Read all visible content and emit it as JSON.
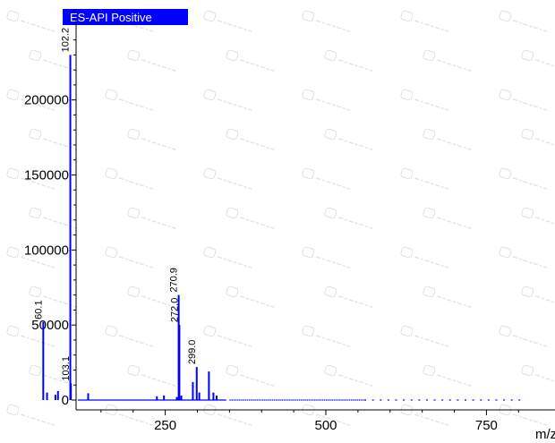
{
  "chart_data": {
    "type": "bar",
    "title": "ES-API Positive",
    "xlabel": "m/z",
    "ylabel": "",
    "xlim": [
      0,
      820
    ],
    "ylim": [
      -5000,
      285000
    ],
    "xticks": [
      250,
      500,
      750
    ],
    "yticks": [
      0,
      50000,
      100000,
      150000,
      200000
    ],
    "grid": false,
    "series_color": "#0000ff",
    "title_bg": "#0000ff",
    "peaks": [
      {
        "x": 60.1,
        "y": 52000,
        "label": "60.1"
      },
      {
        "x": 66.0,
        "y": 5000,
        "label": ""
      },
      {
        "x": 79.0,
        "y": 3500,
        "label": ""
      },
      {
        "x": 83.0,
        "y": 6000,
        "label": ""
      },
      {
        "x": 102.2,
        "y": 230000,
        "label": "102.2"
      },
      {
        "x": 103.1,
        "y": 11000,
        "label": "103.1"
      },
      {
        "x": 130.0,
        "y": 4500,
        "label": ""
      },
      {
        "x": 237.0,
        "y": 2500,
        "label": ""
      },
      {
        "x": 248.0,
        "y": 3000,
        "label": ""
      },
      {
        "x": 268.0,
        "y": 2000,
        "label": ""
      },
      {
        "x": 270.9,
        "y": 70000,
        "label": "270.9"
      },
      {
        "x": 272.0,
        "y": 50000,
        "label": "272.0"
      },
      {
        "x": 275.0,
        "y": 3000,
        "label": ""
      },
      {
        "x": 293.0,
        "y": 12000,
        "label": ""
      },
      {
        "x": 299.0,
        "y": 22000,
        "label": "299.0"
      },
      {
        "x": 303.0,
        "y": 5000,
        "label": ""
      },
      {
        "x": 318.0,
        "y": 19000,
        "label": ""
      },
      {
        "x": 325.0,
        "y": 5000,
        "label": ""
      },
      {
        "x": 330.0,
        "y": 3000,
        "label": ""
      }
    ]
  }
}
